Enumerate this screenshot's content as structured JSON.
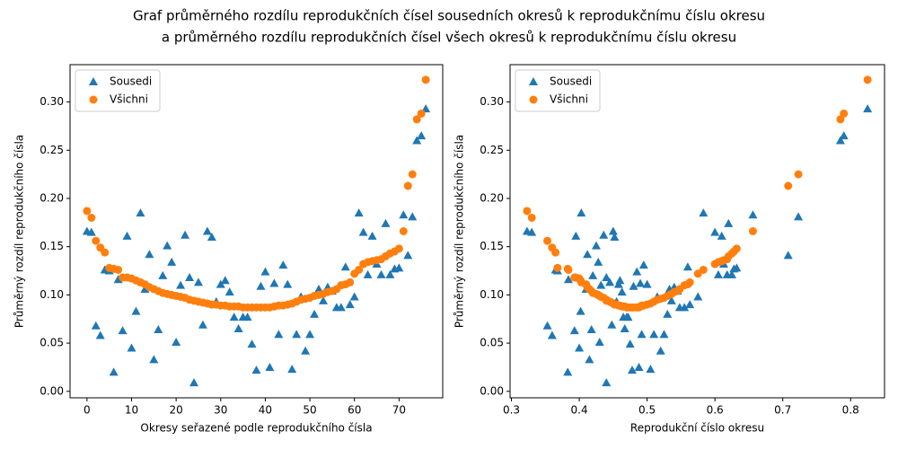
{
  "title": [
    "Graf průměrného rozdílu reprodukčních čísel sousedních okresů k reprodukčnímu číslu okresu",
    "a průměrného rozdílu reprodukčních čísel všech okresů k reprodukčnímu číslu okresu"
  ],
  "chart_data": [
    {
      "type": "scatter",
      "xlabel": "Okresy seřazené podle reprodukčního čísla",
      "ylabel": "Průměrný rozdíl reprodukčního čísla",
      "legend": "upper left",
      "xlim": [
        -3.8,
        79.8
      ],
      "ylim": [
        -0.0067,
        0.3387
      ],
      "xticks": [
        0,
        10,
        20,
        30,
        40,
        50,
        60,
        70
      ],
      "yticks": [
        {
          "value": 0,
          "label": "0.00"
        },
        {
          "value": 0.05,
          "label": "0.05"
        },
        {
          "value": 0.1,
          "label": "0.10"
        },
        {
          "value": 0.15,
          "label": "0.15"
        },
        {
          "value": 0.2,
          "label": "0.20"
        },
        {
          "value": 0.25,
          "label": "0.25"
        },
        {
          "value": 0.3,
          "label": "0.30"
        }
      ],
      "x": [
        0,
        1,
        2,
        3,
        4,
        5,
        6,
        7,
        8,
        9,
        10,
        11,
        12,
        13,
        14,
        15,
        16,
        17,
        18,
        19,
        20,
        21,
        22,
        23,
        24,
        25,
        26,
        27,
        28,
        29,
        30,
        31,
        32,
        33,
        34,
        35,
        36,
        37,
        38,
        39,
        40,
        41,
        42,
        43,
        44,
        45,
        46,
        47,
        48,
        49,
        50,
        51,
        52,
        53,
        54,
        55,
        56,
        57,
        58,
        59,
        60,
        61,
        62,
        63,
        64,
        65,
        66,
        67,
        68,
        69,
        70,
        71,
        72,
        73,
        74,
        75,
        76
      ],
      "series": [
        {
          "name": "Sousedi",
          "color": "#1f77b4",
          "marker": "triangle",
          "values": [
            0.166,
            0.165,
            0.068,
            0.058,
            0.126,
            0.125,
            0.02,
            0.116,
            0.063,
            0.161,
            0.045,
            0.083,
            0.185,
            0.106,
            0.142,
            0.033,
            0.064,
            0.12,
            0.151,
            0.134,
            0.051,
            0.11,
            0.162,
            0.118,
            0.009,
            0.113,
            0.069,
            0.166,
            0.16,
            0.093,
            0.111,
            0.115,
            0.103,
            0.077,
            0.065,
            0.077,
            0.077,
            0.049,
            0.022,
            0.109,
            0.124,
            0.025,
            0.112,
            0.059,
            0.131,
            0.111,
            0.023,
            0.059,
            0.098,
            0.042,
            0.059,
            0.08,
            0.106,
            0.094,
            0.108,
            0.104,
            0.087,
            0.087,
            0.129,
            0.09,
            0.098,
            0.185,
            0.165,
            0.121,
            0.161,
            0.132,
            0.121,
            0.174,
            0.121,
            0.127,
            0.128,
            0.183,
            0.141,
            0.181,
            0.26,
            0.265,
            0.293
          ]
        },
        {
          "name": "Všichni",
          "color": "#ff7f0e",
          "marker": "circle",
          "values": [
            0.187,
            0.18,
            0.156,
            0.149,
            0.144,
            0.128,
            0.127,
            0.126,
            0.118,
            0.118,
            0.117,
            0.115,
            0.113,
            0.111,
            0.108,
            0.106,
            0.104,
            0.102,
            0.101,
            0.1,
            0.099,
            0.098,
            0.097,
            0.095,
            0.094,
            0.093,
            0.092,
            0.091,
            0.09,
            0.09,
            0.089,
            0.089,
            0.088,
            0.088,
            0.088,
            0.087,
            0.087,
            0.087,
            0.087,
            0.087,
            0.087,
            0.087,
            0.088,
            0.089,
            0.089,
            0.09,
            0.091,
            0.093,
            0.095,
            0.096,
            0.097,
            0.099,
            0.1,
            0.101,
            0.103,
            0.104,
            0.106,
            0.11,
            0.111,
            0.113,
            0.122,
            0.126,
            0.132,
            0.134,
            0.135,
            0.136,
            0.137,
            0.14,
            0.143,
            0.145,
            0.148,
            0.166,
            0.213,
            0.225,
            0.282,
            0.288,
            0.323
          ]
        }
      ]
    },
    {
      "type": "scatter",
      "xlabel": "Reprodukční číslo okresu",
      "ylabel": "Průměrný rozdíl reprodukčního čísla",
      "legend": "upper left",
      "xlim": [
        0.298,
        0.85
      ],
      "ylim": [
        -0.0067,
        0.3387
      ],
      "xticks": [
        0.3,
        0.4,
        0.5,
        0.6,
        0.7,
        0.8
      ],
      "yticks": [
        {
          "value": 0,
          "label": "0.00"
        },
        {
          "value": 0.05,
          "label": "0.05"
        },
        {
          "value": 0.1,
          "label": "0.10"
        },
        {
          "value": 0.15,
          "label": "0.15"
        },
        {
          "value": 0.2,
          "label": "0.20"
        },
        {
          "value": 0.25,
          "label": "0.25"
        },
        {
          "value": 0.3,
          "label": "0.30"
        }
      ],
      "x": [
        0.323,
        0.33,
        0.353,
        0.36,
        0.365,
        0.368,
        0.383,
        0.384,
        0.393,
        0.395,
        0.4,
        0.402,
        0.403,
        0.41,
        0.412,
        0.415,
        0.418,
        0.42,
        0.425,
        0.428,
        0.43,
        0.432,
        0.436,
        0.44,
        0.44,
        0.445,
        0.448,
        0.45,
        0.452,
        0.455,
        0.458,
        0.46,
        0.463,
        0.465,
        0.467,
        0.47,
        0.472,
        0.475,
        0.478,
        0.48,
        0.485,
        0.488,
        0.49,
        0.492,
        0.495,
        0.5,
        0.505,
        0.51,
        0.515,
        0.52,
        0.525,
        0.53,
        0.533,
        0.536,
        0.54,
        0.545,
        0.548,
        0.555,
        0.56,
        0.563,
        0.575,
        0.583,
        0.6,
        0.605,
        0.61,
        0.613,
        0.618,
        0.62,
        0.625,
        0.628,
        0.632,
        0.656,
        0.708,
        0.723,
        0.785,
        0.79,
        0.825
      ],
      "series": [
        {
          "name": "Sousedi",
          "color": "#1f77b4",
          "marker": "triangle",
          "values": [
            0.166,
            0.165,
            0.068,
            0.058,
            0.126,
            0.125,
            0.02,
            0.116,
            0.063,
            0.161,
            0.045,
            0.083,
            0.185,
            0.106,
            0.142,
            0.033,
            0.064,
            0.12,
            0.151,
            0.134,
            0.051,
            0.11,
            0.162,
            0.118,
            0.009,
            0.113,
            0.069,
            0.166,
            0.16,
            0.093,
            0.111,
            0.115,
            0.103,
            0.077,
            0.065,
            0.077,
            0.077,
            0.049,
            0.022,
            0.109,
            0.124,
            0.025,
            0.112,
            0.059,
            0.131,
            0.111,
            0.023,
            0.059,
            0.098,
            0.042,
            0.059,
            0.08,
            0.106,
            0.094,
            0.108,
            0.104,
            0.087,
            0.087,
            0.129,
            0.09,
            0.098,
            0.185,
            0.165,
            0.121,
            0.161,
            0.132,
            0.121,
            0.174,
            0.121,
            0.127,
            0.128,
            0.183,
            0.141,
            0.181,
            0.26,
            0.265,
            0.293
          ]
        },
        {
          "name": "Všichni",
          "color": "#ff7f0e",
          "marker": "circle",
          "values": [
            0.187,
            0.18,
            0.156,
            0.149,
            0.144,
            0.128,
            0.127,
            0.126,
            0.118,
            0.118,
            0.117,
            0.115,
            0.113,
            0.111,
            0.108,
            0.106,
            0.104,
            0.102,
            0.101,
            0.1,
            0.099,
            0.098,
            0.097,
            0.095,
            0.094,
            0.093,
            0.092,
            0.091,
            0.09,
            0.09,
            0.089,
            0.089,
            0.088,
            0.088,
            0.088,
            0.087,
            0.087,
            0.087,
            0.087,
            0.087,
            0.087,
            0.087,
            0.088,
            0.089,
            0.089,
            0.09,
            0.091,
            0.093,
            0.095,
            0.096,
            0.097,
            0.099,
            0.1,
            0.101,
            0.103,
            0.104,
            0.106,
            0.11,
            0.111,
            0.113,
            0.122,
            0.126,
            0.132,
            0.134,
            0.135,
            0.136,
            0.137,
            0.14,
            0.143,
            0.145,
            0.148,
            0.166,
            0.213,
            0.225,
            0.282,
            0.288,
            0.323
          ]
        }
      ]
    }
  ]
}
